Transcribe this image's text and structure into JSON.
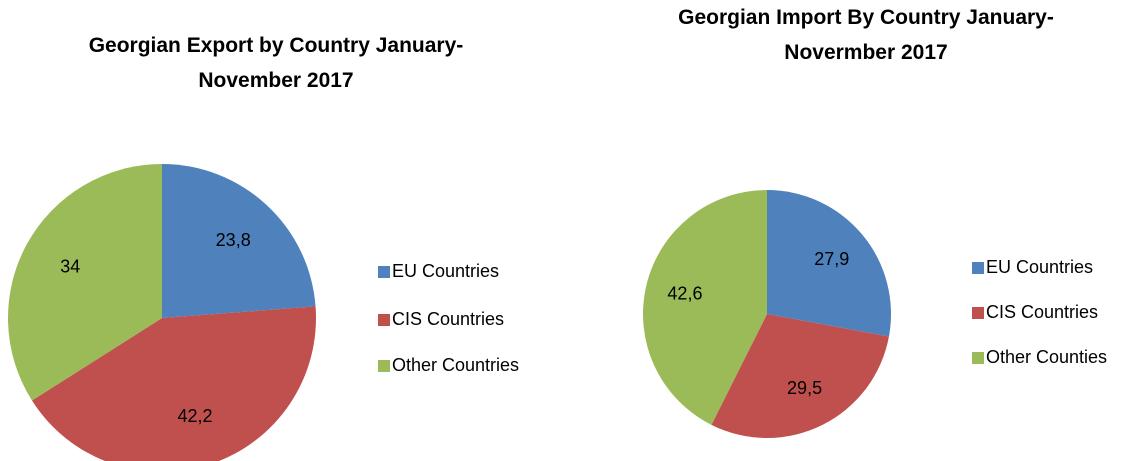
{
  "chart_data": [
    {
      "type": "pie",
      "title": "Georgian Export by Country January-\nNovember 2017",
      "categories": [
        "EU Countries",
        "CIS Countries",
        "Other Countries"
      ],
      "values": [
        23.8,
        42.2,
        34
      ],
      "value_labels": [
        "23,8",
        "42,2",
        "34"
      ],
      "colors": [
        "#4f81bd",
        "#c0504d",
        "#9bbb59"
      ]
    },
    {
      "type": "pie",
      "title": "Georgian Import By Country January-\nNovermber 2017",
      "categories": [
        "EU Countries",
        "CIS Countries",
        "Other Counties"
      ],
      "values": [
        27.9,
        29.5,
        42.6
      ],
      "value_labels": [
        "27,9",
        "29,5",
        "42,6"
      ],
      "colors": [
        "#4f81bd",
        "#c0504d",
        "#9bbb59"
      ]
    }
  ]
}
